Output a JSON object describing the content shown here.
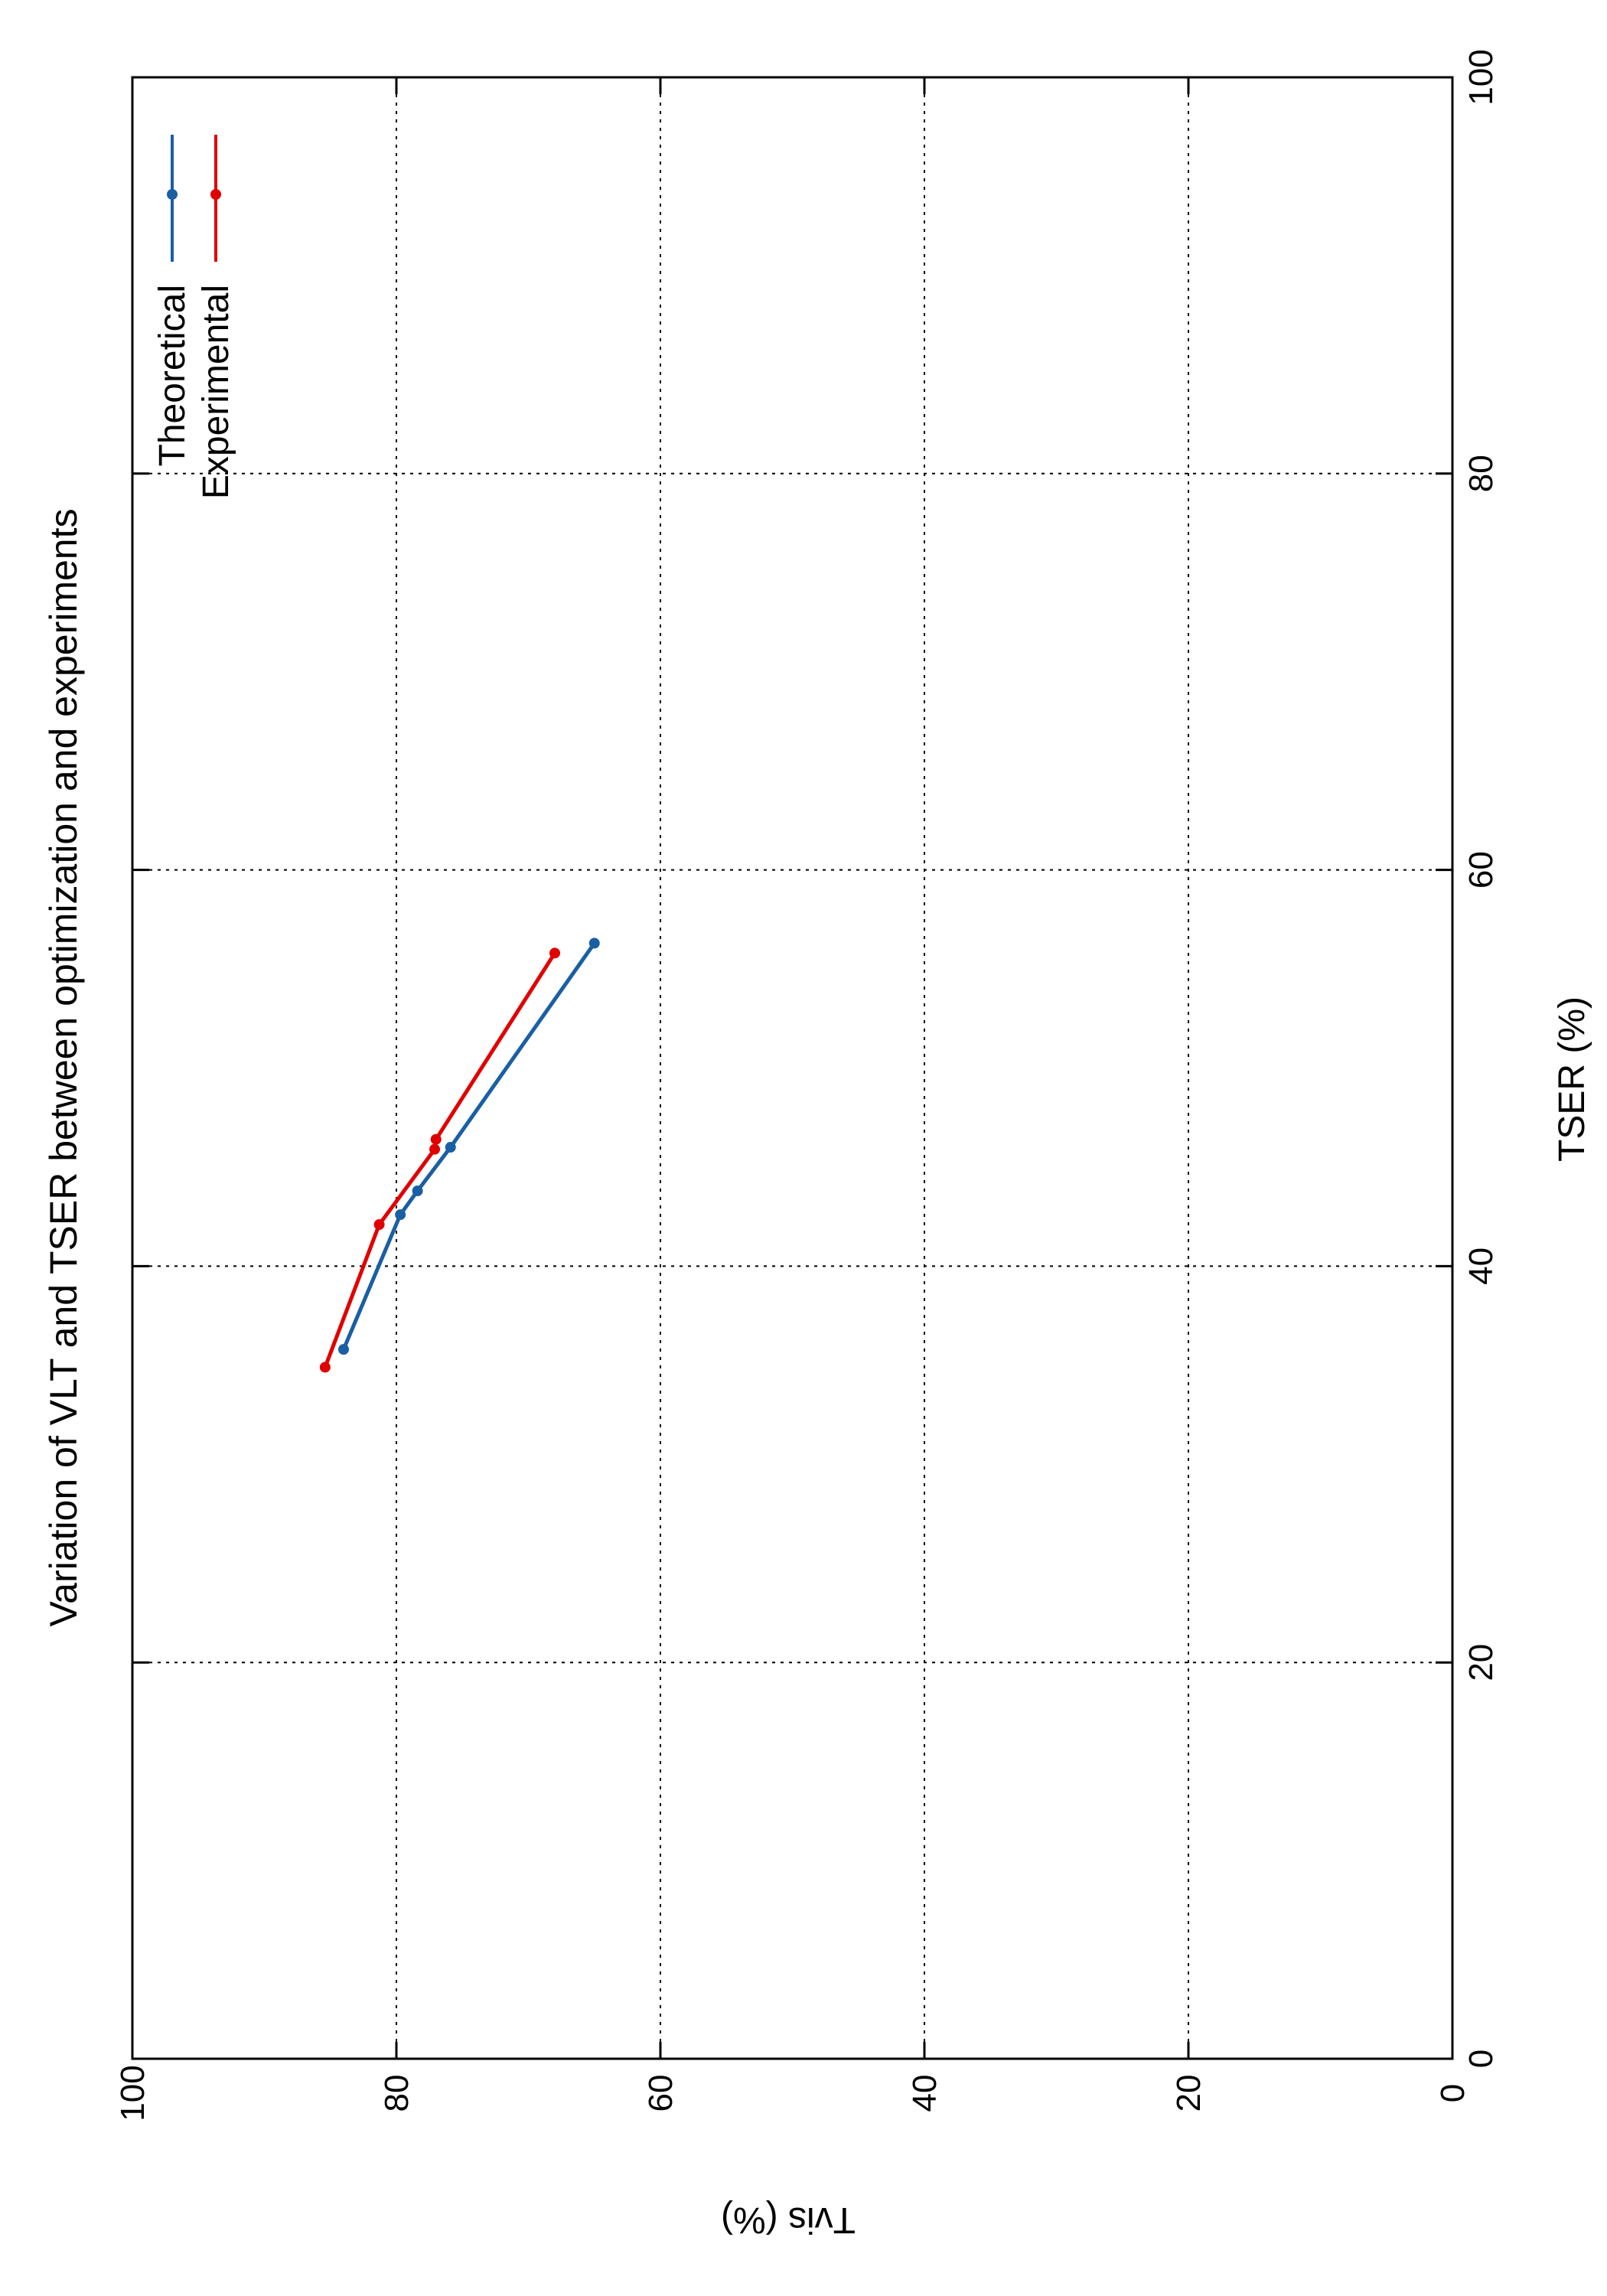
{
  "chart_data": {
    "type": "line",
    "title": "Variation of VLT and TSER between optimization and experiments",
    "xlabel": "TSER (%)",
    "ylabel": "Tvis (%)",
    "xlim": [
      0,
      100
    ],
    "ylim": [
      0,
      100
    ],
    "xticks": [
      0,
      20,
      40,
      60,
      80,
      100
    ],
    "yticks": [
      0,
      20,
      40,
      60,
      80,
      100
    ],
    "grid": true,
    "orientation": "rotated 90° clockwise",
    "legend_position": "top-right",
    "series": [
      {
        "name": "Theoretical",
        "color": "#1a5fa3",
        "x": [
          35.8,
          42.6,
          43.8,
          46.0,
          56.3
        ],
        "y": [
          84.0,
          79.7,
          78.4,
          75.9,
          65.0
        ]
      },
      {
        "name": "Experimental",
        "color": "#e00000",
        "x": [
          34.9,
          42.1,
          45.9,
          46.4,
          55.8
        ],
        "y": [
          85.4,
          81.3,
          77.1,
          77.0,
          68.0
        ]
      }
    ]
  }
}
